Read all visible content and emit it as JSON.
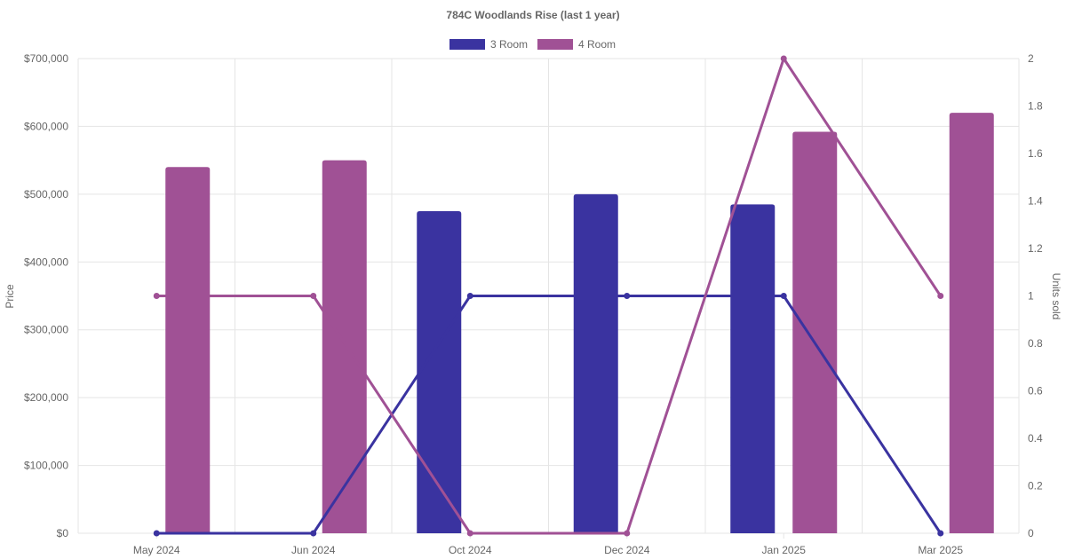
{
  "chart_data": {
    "type": "bar",
    "title": "784C Woodlands Rise (last 1 year)",
    "categories": [
      "May 2024",
      "Jun 2024",
      "Oct 2024",
      "Dec 2024",
      "Jan 2025",
      "Mar 2025"
    ],
    "ylabel": "Price",
    "y2label": "Units sold",
    "ylim": [
      0,
      700000
    ],
    "y2lim": [
      0,
      2
    ],
    "y_ticks": [
      "$0",
      "$100,000",
      "$200,000",
      "$300,000",
      "$400,000",
      "$500,000",
      "$600,000",
      "$700,000"
    ],
    "y2_ticks": [
      "0",
      "0.2",
      "0.4",
      "0.6",
      "0.8",
      "1",
      "1.2",
      "1.4",
      "1.6",
      "1.8",
      "2"
    ],
    "grid": true,
    "legend_position": "top",
    "series": [
      {
        "name": "3 Room",
        "color": "#3a33a0",
        "price": [
          null,
          null,
          475000,
          500000,
          485000,
          null
        ],
        "units_sold": [
          0,
          0,
          1,
          1,
          1,
          0
        ]
      },
      {
        "name": "4 Room",
        "color": "#a05195",
        "price": [
          540000,
          550000,
          null,
          null,
          592000,
          620000
        ],
        "units_sold": [
          1,
          1,
          0,
          0,
          2,
          1
        ]
      }
    ]
  }
}
